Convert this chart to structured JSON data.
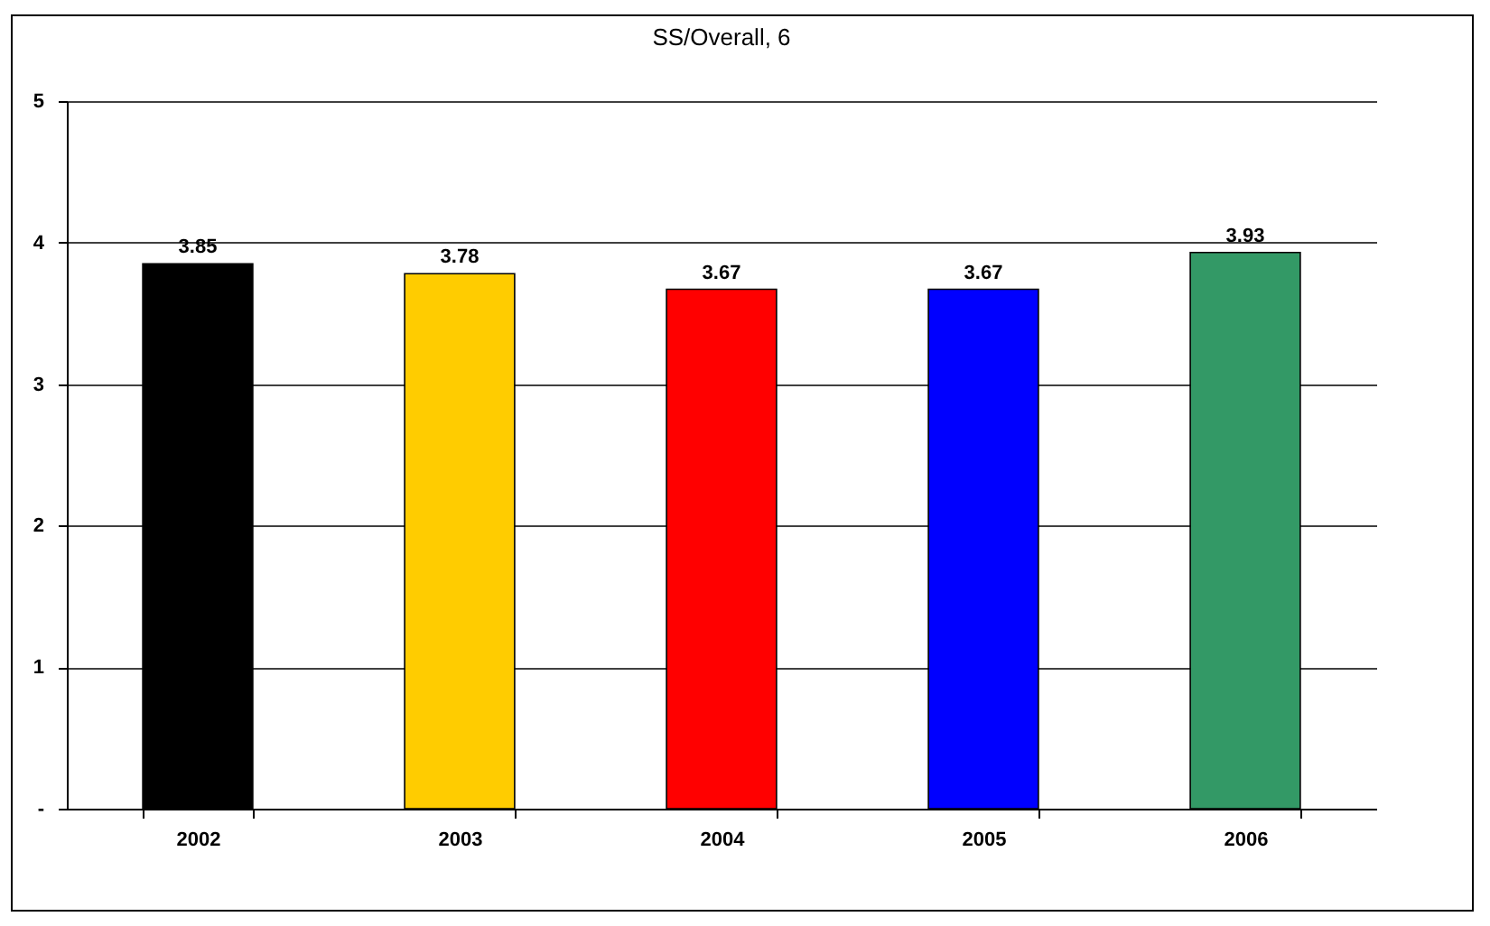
{
  "chart_data": {
    "type": "bar",
    "title": "SS/Overall, 6",
    "categories": [
      "2002",
      "2003",
      "2004",
      "2005",
      "2006"
    ],
    "values": [
      3.85,
      3.78,
      3.67,
      3.67,
      3.93
    ],
    "colors": [
      "#000000",
      "#ffcc00",
      "#ff0000",
      "#0000ff",
      "#339966"
    ],
    "ylim": [
      0,
      5
    ],
    "yticks": [
      {
        "value": 0,
        "label": "-"
      },
      1,
      2,
      3,
      4,
      5
    ],
    "grid": "y",
    "data_labels": true
  }
}
